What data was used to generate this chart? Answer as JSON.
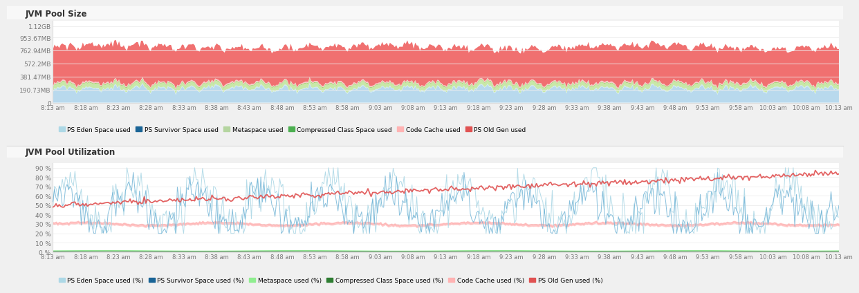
{
  "title1": "JVM Pool Size",
  "title2": "JVM Pool Utilization",
  "background_color": "#f0f0f0",
  "panel_color": "#ffffff",
  "header_bg": "#f5f5f5",
  "x_labels": [
    "8:13 am",
    "8:18 am",
    "8:23 am",
    "8:28 am",
    "8:33 am",
    "8:38 am",
    "8:43 am",
    "8:48 am",
    "8:53 am",
    "8:58 am",
    "9:03 am",
    "9:08 am",
    "9:13 am",
    "9:18 am",
    "9:23 am",
    "9:28 am",
    "9:33 am",
    "9:38 am",
    "9:43 am",
    "9:48 am",
    "9:53 am",
    "9:58 am",
    "10:03 am",
    "10:08 am",
    "10:13 am"
  ],
  "y1_labels": [
    "0",
    "190.73MB",
    "381.47MB",
    "572.2MB",
    "762.94MB",
    "953.67MB",
    "1.12GB"
  ],
  "y2_labels": [
    "0 %",
    "10 %",
    "20 %",
    "30 %",
    "40 %",
    "50 %",
    "60 %",
    "70 %",
    "80 %",
    "90 %"
  ],
  "legend1": [
    {
      "label": "PS Eden Space used",
      "color": "#add8e6"
    },
    {
      "label": "PS Survivor Space used",
      "color": "#1a6496"
    },
    {
      "label": "Metaspace used",
      "color": "#b5d5a0"
    },
    {
      "label": "Compressed Class Space used",
      "color": "#4caf50"
    },
    {
      "label": "Code Cache used",
      "color": "#ffb3b3"
    },
    {
      "label": "PS Old Gen used",
      "color": "#e05252"
    }
  ],
  "legend2": [
    {
      "label": "PS Eden Space used (%)",
      "color": "#add8e6"
    },
    {
      "label": "PS Survivor Space used (%)",
      "color": "#1a6496"
    },
    {
      "label": "Metaspace used (%)",
      "color": "#90ee90"
    },
    {
      "label": "Compressed Class Space used (%)",
      "color": "#2e7d32"
    },
    {
      "label": "Code Cache used (%)",
      "color": "#ffb3b3"
    },
    {
      "label": "PS Old Gen used (%)",
      "color": "#e05252"
    }
  ],
  "n_points": 500,
  "eden_base": 150000000,
  "eden_amp": 80000000,
  "old_gen_base": 520000000,
  "old_gen_amp": 30000000
}
